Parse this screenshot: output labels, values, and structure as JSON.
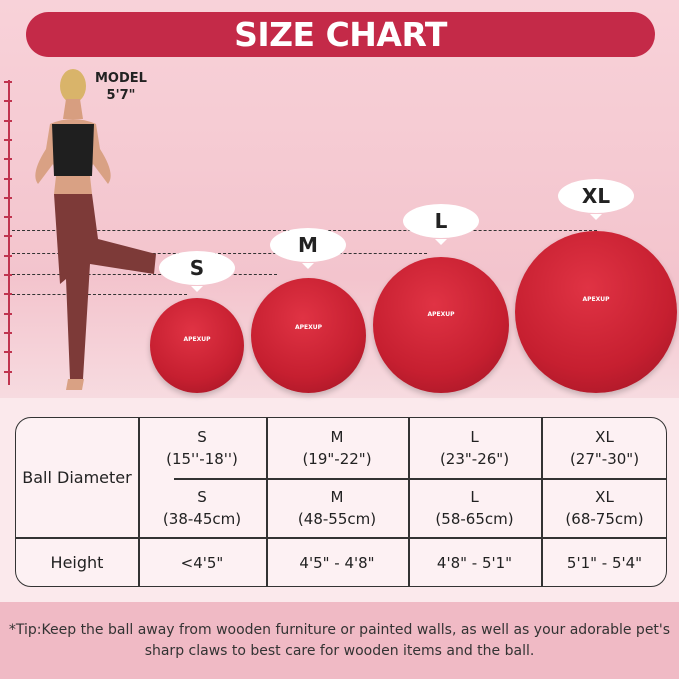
{
  "title": "SIZE CHART",
  "model": {
    "label": "MODEL",
    "height": "5'7\""
  },
  "brand": "APEXUP",
  "sizes": [
    "S",
    "M",
    "L",
    "XL"
  ],
  "table": {
    "row_labels": {
      "diameter": "Ball Diameter",
      "height": "Height"
    },
    "columns": [
      {
        "size": "S",
        "inches": "(15''-18'')",
        "cm_size": "S",
        "cm": "(38-45cm)",
        "height": "<4'5\""
      },
      {
        "size": "M",
        "inches": "(19\"-22\")",
        "cm_size": "M",
        "cm": "(48-55cm)",
        "height": "4'5\" - 4'8\""
      },
      {
        "size": "L",
        "inches": "(23\"-26\")",
        "cm_size": "L",
        "cm": "(58-65cm)",
        "height": "4'8\" - 5'1\""
      },
      {
        "size": "XL",
        "inches": "(27\"-30\")",
        "cm_size": "XL",
        "cm": "(68-75cm)",
        "height": "5'1\" - 5'4\""
      }
    ]
  },
  "tip": "*Tip:Keep the ball away from wooden furniture or painted walls, as well as your adorable pet's sharp claws to best care for wooden items and the ball.",
  "colors": {
    "banner": "#c42a48",
    "ball": "#c61f30",
    "tip_band": "#f0bac5"
  }
}
